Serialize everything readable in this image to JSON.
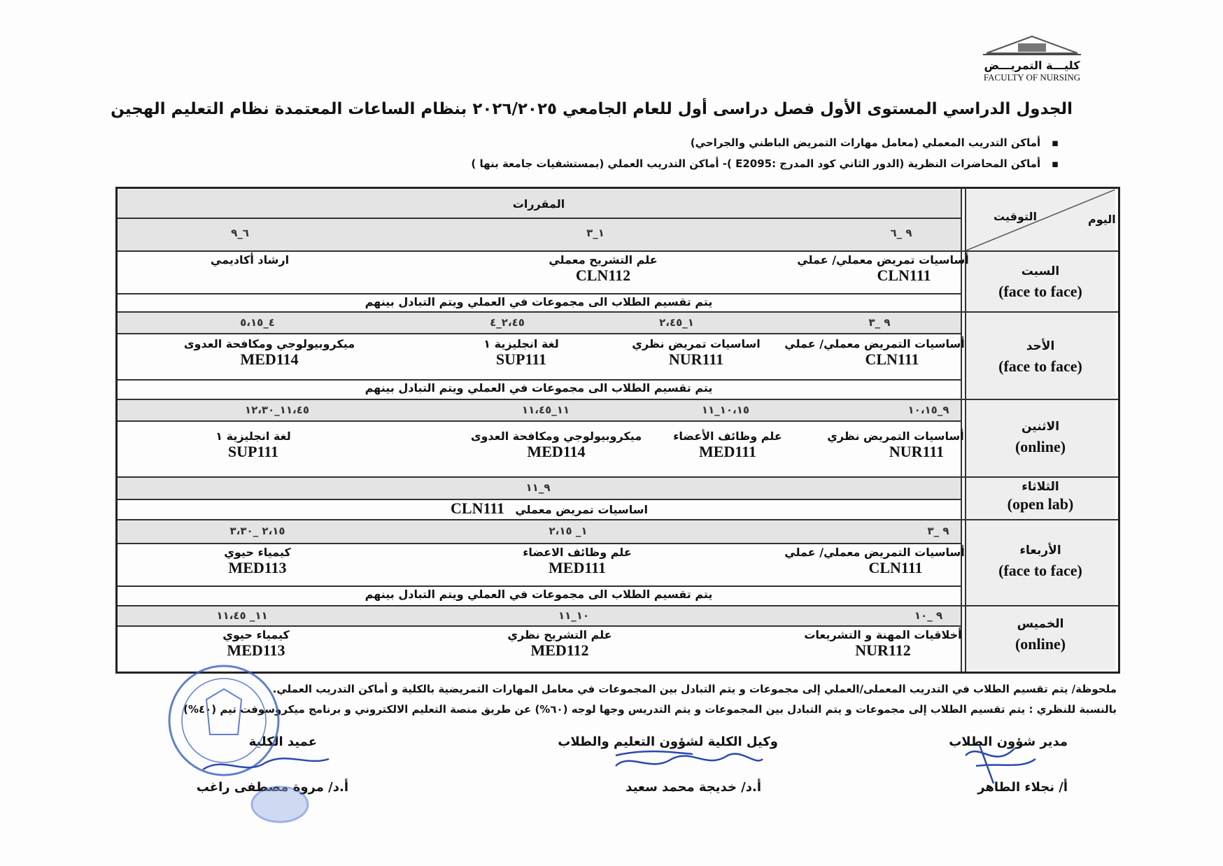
{
  "logo": {
    "arabic": "كليـــة التمريـــض",
    "english": "FACULTY OF NURSING"
  },
  "title": "الجدول الدراسي المستوى الأول فصل دراسى أول للعام الجامعي ٢٠٢٦/٢٠٢٥ بنظام الساعات المعتمدة نظام التعليم الهجين",
  "bullets": [
    "أماكن التدريب المعملي   (معامل مهارات التمريض الباطني والجراحي)",
    "أماكن المحاضرات النظرية (الدور الثاني كود المدرج :E2095 )- أماكن التدريب العملي (بمستشفيات جامعة بنها )"
  ],
  "table": {
    "header_courses": "المقررات",
    "header_day": "اليوم",
    "header_time": "التوقيت",
    "group_note": "يتم تقسيم الطلاب الى مجموعات في العملي ويتم التبادل بينهم",
    "days": [
      {
        "name": "السبت",
        "mode": "(face to face)",
        "slots": [
          {
            "time": "٩ _٦",
            "course": "أساسيات تمريض معملي/ عملي",
            "code": "CLN111"
          },
          {
            "time": "١_٣",
            "course": "علم التشريح معملي",
            "code": "CLN112"
          },
          {
            "time": "٦_٩",
            "course": "ارشاد أكاديمي",
            "code": ""
          }
        ]
      },
      {
        "name": "الأحد",
        "mode": "(face to face)",
        "slots": [
          {
            "time": "٩ _٣",
            "course": "أساسيات التمريض معملي/ عملي",
            "code": "CLN111"
          },
          {
            "time": "١_٢،٤٥",
            "course": "اساسيات تمريض نظري",
            "code": "NUR111"
          },
          {
            "time": "٢،٤٥_٤",
            "course": "لغة انجليزية ١",
            "code": "SUP111"
          },
          {
            "time": "٤_٥،١٥",
            "course": "ميكروبيولوجي ومكافحة العدوى",
            "code": "MED114"
          }
        ]
      },
      {
        "name": "الاثنين",
        "mode": "(online)",
        "slots": [
          {
            "time": "٩_١٠،١٥",
            "course": "أساسيات التمريض نظري",
            "code": "NUR111"
          },
          {
            "time": "١٠،١٥_١١",
            "course": "علم وظائف الأعضاء",
            "code": "MED111"
          },
          {
            "time": "١١_١١،٤٥",
            "course": "ميكروبيولوجي ومكافحة العدوى",
            "code": "MED114"
          },
          {
            "time": "١١،٤٥_١٢،٣٠",
            "course": "لغة انجليزية ١",
            "code": "SUP111"
          }
        ]
      },
      {
        "name": "الثلاثاء",
        "mode": "(open lab)",
        "slots": [
          {
            "time": "٩_١١",
            "course": "اساسيات تمريض معملي",
            "code": "CLN111"
          }
        ]
      },
      {
        "name": "الأربعاء",
        "mode": "(face to face)",
        "slots": [
          {
            "time": "٩ _٣",
            "course": "أساسيات التمريض معملي/ عملي",
            "code": "CLN111"
          },
          {
            "time": "١_ ٢،١٥",
            "course": "علم وظائف الاعضاء",
            "code": "MED111"
          },
          {
            "time": "٢،١٥ _٣،٣٠",
            "course": "كيمياء حيوي",
            "code": "MED113"
          }
        ]
      },
      {
        "name": "الخميس",
        "mode": "(online)",
        "slots": [
          {
            "time": "٩ _١٠",
            "course": "أخلاقيات المهنة و التشريعات",
            "code": "NUR112"
          },
          {
            "time": "١٠_١١",
            "course": "علم التشريح نظري",
            "code": "MED112"
          },
          {
            "time": "١١_ ١١،٤٥",
            "course": "كيمياء حيوي",
            "code": "MED113"
          }
        ]
      }
    ]
  },
  "footnotes": [
    "ملحوظة/ يتم تقسيم الطلاب في التدريب المعملى/العملي إلى مجموعات و يتم التبادل بين المجموعات في معامل المهارات التمريضية بالكلية و أماكن التدريب العملي.",
    "بالنسبة للنظري : يتم تقسيم الطلاب إلى مجموعات و يتم التبادل بين المجموعات و يتم التدريس وجها لوجه (٦٠%) عن طريق منصة التعليم الالكتروني و برنامج ميكروسوفت تيم (٤٠%)"
  ],
  "signatures": [
    {
      "role": "مدير شؤون الطلاب",
      "name": "أ/ نجلاء الطاهر"
    },
    {
      "role": "وكيل الكلية لشؤون التعليم والطلاب",
      "name": "أ.د/ خديجة محمد سعيد"
    },
    {
      "role": "عميد الكلية",
      "name": "أ.د/ مروة مصطفى راغب"
    }
  ],
  "colors": {
    "ink": "#111111",
    "shade": "#e4e4e4",
    "stamp": "#3b5fc8"
  }
}
